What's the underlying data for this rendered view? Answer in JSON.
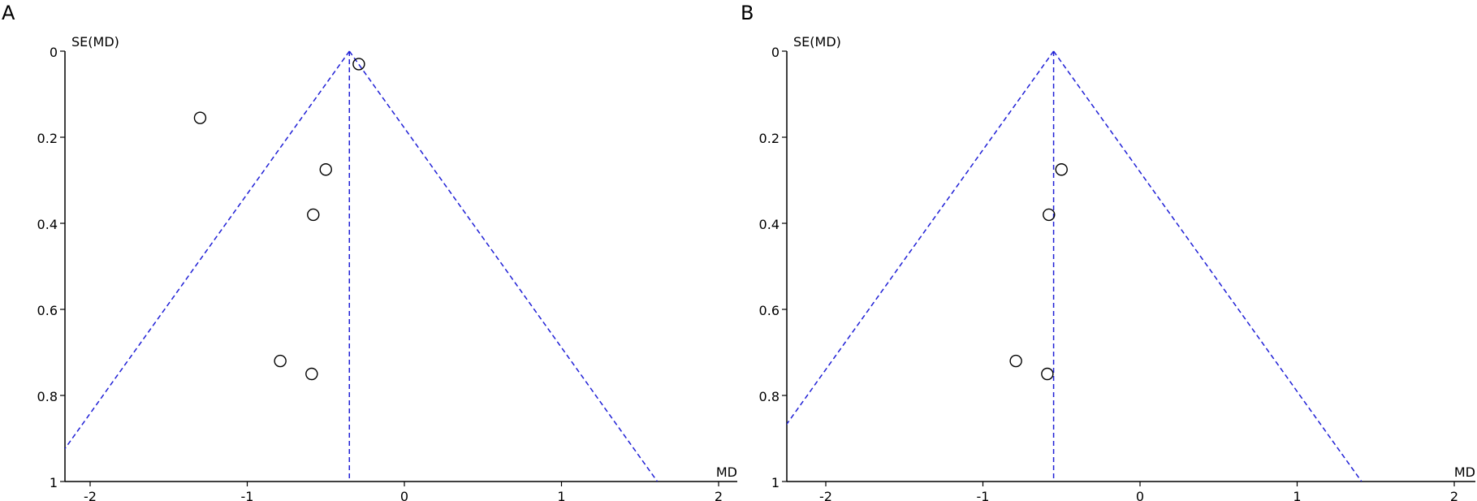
{
  "chart_data": [
    {
      "type": "scatter",
      "panel_label": "A",
      "xlabel": "MD",
      "ylabel": "SE(MD)",
      "xlim": [
        -2.15,
        2.15
      ],
      "ylim": [
        0,
        1
      ],
      "y_reversed": true,
      "x_ticks": [
        -2,
        -1,
        0,
        1,
        2
      ],
      "y_ticks": [
        0,
        0.2,
        0.4,
        0.6,
        0.8,
        1
      ],
      "x_tick_labels": [
        "-2",
        "-1",
        "0",
        "1",
        "2"
      ],
      "y_tick_labels": [
        "0",
        "0.2",
        "0.4",
        "0.6",
        "0.8",
        "1"
      ],
      "pooled_md": -0.35,
      "funnel": "pseudo 95% confidence limits (dashed blue)",
      "funnel_color": "#1f1fd6",
      "points": [
        {
          "x": -0.29,
          "y": 0.03
        },
        {
          "x": -1.3,
          "y": 0.155
        },
        {
          "x": -0.5,
          "y": 0.275
        },
        {
          "x": -0.58,
          "y": 0.38
        },
        {
          "x": -0.79,
          "y": 0.72
        },
        {
          "x": -0.59,
          "y": 0.75
        }
      ]
    },
    {
      "type": "scatter",
      "panel_label": "B",
      "xlabel": "MD",
      "ylabel": "SE(MD)",
      "xlim": [
        -2.15,
        2.15
      ],
      "ylim": [
        0,
        1
      ],
      "y_reversed": true,
      "x_ticks": [
        -2,
        -1,
        0,
        1,
        2
      ],
      "y_ticks": [
        0,
        0.2,
        0.4,
        0.6,
        0.8,
        1
      ],
      "x_tick_labels": [
        "-2",
        "-1",
        "0",
        "1",
        "2"
      ],
      "y_tick_labels": [
        "0",
        "0.2",
        "0.4",
        "0.6",
        "0.8",
        "1"
      ],
      "pooled_md": -0.55,
      "funnel": "pseudo 95% confidence limits (dashed blue)",
      "funnel_color": "#1f1fd6",
      "points": [
        {
          "x": -0.5,
          "y": 0.275
        },
        {
          "x": -0.58,
          "y": 0.38
        },
        {
          "x": -0.79,
          "y": 0.72
        },
        {
          "x": -0.59,
          "y": 0.75
        }
      ]
    }
  ]
}
